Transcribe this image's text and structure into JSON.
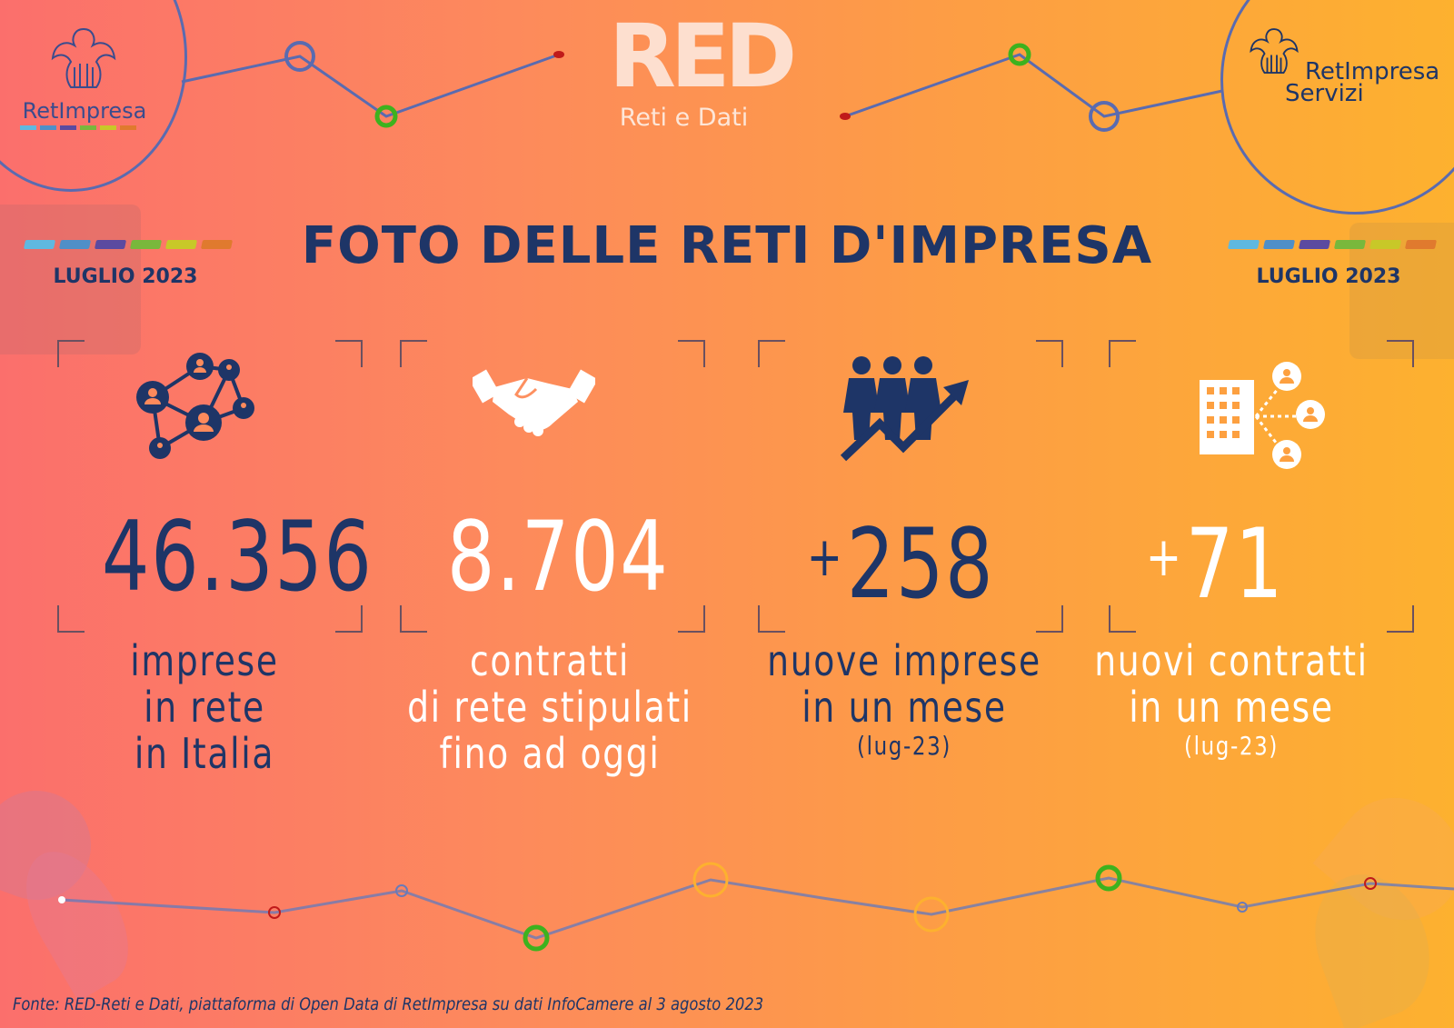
{
  "colors": {
    "navy": "#1e3567",
    "white": "#ffffff",
    "line": "#5a6bb0",
    "accent_green": "#4caf1e",
    "accent_red": "#c01a1a"
  },
  "header": {
    "left_logo": {
      "name": "retimpresa-logo",
      "lines": [
        "RetImpresa"
      ]
    },
    "center_logo": {
      "name": "red-logo",
      "mark": "RED",
      "subtitle": "Reti e Dati"
    },
    "right_logo": {
      "name": "retimpresa-servizi-logo",
      "lines": [
        "RetImpresa",
        "Servizi"
      ]
    },
    "brand_bar_colors": [
      "#5fb8e0",
      "#4f8fc8",
      "#5b4aa0",
      "#79b83c",
      "#c8c828",
      "#e07a2e"
    ]
  },
  "title": "FOTO DELLE RETI D'IMPRESA",
  "date_left": "LUGLIO 2023",
  "date_right": "LUGLIO 2023",
  "stats": [
    {
      "icon": "network-people-icon",
      "value": "46.356",
      "prefix": "",
      "label": [
        "imprese",
        "in rete",
        "in Italia"
      ],
      "note": "",
      "color": "navy"
    },
    {
      "icon": "handshake-icon",
      "value": "8.704",
      "prefix": "",
      "label": [
        "contratti",
        "di rete stipulati",
        "fino ad oggi"
      ],
      "note": "",
      "color": "white"
    },
    {
      "icon": "people-growth-icon",
      "value": "258",
      "prefix": "+",
      "label": [
        "nuove imprese",
        "in un mese"
      ],
      "note": "(lug-23)",
      "color": "navy"
    },
    {
      "icon": "building-network-icon",
      "value": "71",
      "prefix": "+",
      "label": [
        "nuovi contratti",
        "in un mese"
      ],
      "note": "(lug-23)",
      "color": "white"
    }
  ],
  "footer": "Fonte: RED-Reti e Dati, piattaforma di Open Data di RetImpresa su dati InfoCamere al 3 agosto 2023"
}
